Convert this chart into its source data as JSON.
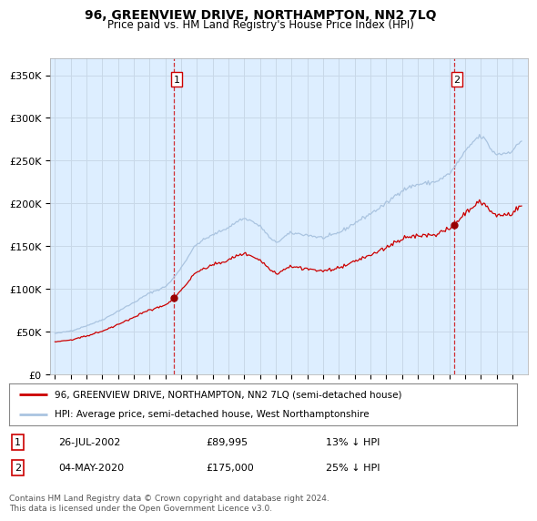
{
  "title": "96, GREENVIEW DRIVE, NORTHAMPTON, NN2 7LQ",
  "subtitle": "Price paid vs. HM Land Registry's House Price Index (HPI)",
  "legend_line1": "96, GREENVIEW DRIVE, NORTHAMPTON, NN2 7LQ (semi-detached house)",
  "legend_line2": "HPI: Average price, semi-detached house, West Northamptonshire",
  "table_rows": [
    {
      "num": "1",
      "date": "26-JUL-2002",
      "price": "£89,995",
      "pct": "13% ↓ HPI"
    },
    {
      "num": "2",
      "date": "04-MAY-2020",
      "price": "£175,000",
      "pct": "25% ↓ HPI"
    }
  ],
  "footnote": "Contains HM Land Registry data © Crown copyright and database right 2024.\nThis data is licensed under the Open Government Licence v3.0.",
  "sale1_x": 2002.55,
  "sale1_y": 89995,
  "sale2_x": 2020.34,
  "sale2_y": 175000,
  "hpi_color": "#aac4e0",
  "price_color": "#cc0000",
  "marker_color": "#990000",
  "chart_bg": "#ddeeff",
  "ylim": [
    0,
    370000
  ],
  "yticks": [
    0,
    50000,
    100000,
    150000,
    200000,
    250000,
    300000,
    350000
  ],
  "xlim": [
    1994.7,
    2025.0
  ],
  "background_color": "#ffffff",
  "grid_color": "#c8d8e8"
}
